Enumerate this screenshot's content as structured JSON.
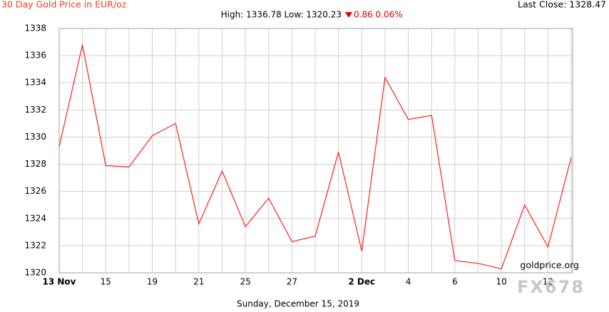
{
  "chart_data": {
    "type": "line",
    "title": "30 Day Gold Price in EUR/oz",
    "last_close": "Last Close: 1328.47",
    "subtitle": "High: 1336.78 Low: 1320.23",
    "change": "0.86 0.06%",
    "date": "Sunday, December 15, 2019",
    "watermarks": [
      "goldprice.org",
      "FX678"
    ],
    "categories": [
      "13 Nov",
      null,
      "15",
      null,
      "19",
      null,
      "21",
      null,
      "25",
      null,
      "27",
      null,
      null,
      "2 Dec",
      null,
      "4",
      null,
      "6",
      null,
      "10",
      null,
      "12",
      null
    ],
    "series": [
      {
        "name": "EUR/oz",
        "color": "#ff2020",
        "values": [
          1329.3,
          1336.8,
          1327.9,
          1327.8,
          1330.1,
          1331.0,
          1323.6,
          1327.5,
          1323.4,
          1325.5,
          1322.3,
          1322.7,
          1328.9,
          1321.6,
          1334.4,
          1331.3,
          1331.6,
          1320.9,
          1320.7,
          1320.3,
          1325.0,
          1321.9,
          1328.5
        ]
      }
    ],
    "ylim": [
      1320,
      1338
    ],
    "yticks": [
      1320,
      1322,
      1324,
      1326,
      1328,
      1330,
      1332,
      1334,
      1336,
      1338
    ],
    "grid": true
  }
}
